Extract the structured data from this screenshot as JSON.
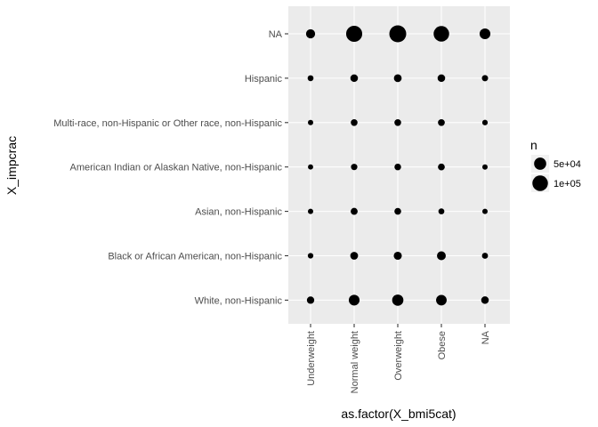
{
  "chart_data": {
    "type": "scatter",
    "title": "",
    "xlabel": "as.factor(X_bmi5cat)",
    "ylabel": "X_impcrac",
    "x_categories": [
      "Underweight",
      "Normal weight",
      "Overweight",
      "Obese",
      "NA"
    ],
    "y_categories": [
      "White, non-Hispanic",
      "Black or African American, non-Hispanic",
      "Asian, non-Hispanic",
      "American Indian or Alaskan Native, non-Hispanic",
      "Multi-race, non-Hispanic or Other race, non-Hispanic",
      "Hispanic",
      "NA"
    ],
    "size_variable": "n",
    "points": [
      {
        "x": "Underweight",
        "y": "NA",
        "n": 20000
      },
      {
        "x": "Normal weight",
        "y": "NA",
        "n": 110000
      },
      {
        "x": "Overweight",
        "y": "NA",
        "n": 125000
      },
      {
        "x": "Obese",
        "y": "NA",
        "n": 100000
      },
      {
        "x": "NA",
        "y": "NA",
        "n": 35000
      },
      {
        "x": "Underweight",
        "y": "Hispanic",
        "n": 3000
      },
      {
        "x": "Normal weight",
        "y": "Hispanic",
        "n": 10000
      },
      {
        "x": "Overweight",
        "y": "Hispanic",
        "n": 11000
      },
      {
        "x": "Obese",
        "y": "Hispanic",
        "n": 10000
      },
      {
        "x": "NA",
        "y": "Hispanic",
        "n": 4000
      },
      {
        "x": "Underweight",
        "y": "Multi-race, non-Hispanic or Other race, non-Hispanic",
        "n": 1500
      },
      {
        "x": "Normal weight",
        "y": "Multi-race, non-Hispanic or Other race, non-Hispanic",
        "n": 6000
      },
      {
        "x": "Overweight",
        "y": "Multi-race, non-Hispanic or Other race, non-Hispanic",
        "n": 6000
      },
      {
        "x": "Obese",
        "y": "Multi-race, non-Hispanic or Other race, non-Hispanic",
        "n": 6500
      },
      {
        "x": "NA",
        "y": "Multi-race, non-Hispanic or Other race, non-Hispanic",
        "n": 2000
      },
      {
        "x": "Underweight",
        "y": "American Indian or Alaskan Native, non-Hispanic",
        "n": 1200
      },
      {
        "x": "Normal weight",
        "y": "American Indian or Alaskan Native, non-Hispanic",
        "n": 4500
      },
      {
        "x": "Overweight",
        "y": "American Indian or Alaskan Native, non-Hispanic",
        "n": 5500
      },
      {
        "x": "Obese",
        "y": "American Indian or Alaskan Native, non-Hispanic",
        "n": 6500
      },
      {
        "x": "NA",
        "y": "American Indian or Alaskan Native, non-Hispanic",
        "n": 1500
      },
      {
        "x": "Underweight",
        "y": "Asian, non-Hispanic",
        "n": 1500
      },
      {
        "x": "Normal weight",
        "y": "Asian, non-Hispanic",
        "n": 7000
      },
      {
        "x": "Overweight",
        "y": "Asian, non-Hispanic",
        "n": 6000
      },
      {
        "x": "Obese",
        "y": "Asian, non-Hispanic",
        "n": 3000
      },
      {
        "x": "NA",
        "y": "Asian, non-Hispanic",
        "n": 1500
      },
      {
        "x": "Underweight",
        "y": "Black or African American, non-Hispanic",
        "n": 2000
      },
      {
        "x": "Normal weight",
        "y": "Black or African American, non-Hispanic",
        "n": 11000
      },
      {
        "x": "Overweight",
        "y": "Black or African American, non-Hispanic",
        "n": 13000
      },
      {
        "x": "Obese",
        "y": "Black or African American, non-Hispanic",
        "n": 18000
      },
      {
        "x": "NA",
        "y": "Black or African American, non-Hispanic",
        "n": 3500
      },
      {
        "x": "Underweight",
        "y": "White, non-Hispanic",
        "n": 9000
      },
      {
        "x": "Normal weight",
        "y": "White, non-Hispanic",
        "n": 35000
      },
      {
        "x": "Overweight",
        "y": "White, non-Hispanic",
        "n": 40000
      },
      {
        "x": "Obese",
        "y": "White, non-Hispanic",
        "n": 33000
      },
      {
        "x": "NA",
        "y": "White, non-Hispanic",
        "n": 10000
      }
    ],
    "legend": {
      "title": "n",
      "placement": "right",
      "entries": [
        {
          "label": "5e+04",
          "n": 50000
        },
        {
          "label": "1e+05",
          "n": 100000
        }
      ]
    },
    "grid": true
  }
}
